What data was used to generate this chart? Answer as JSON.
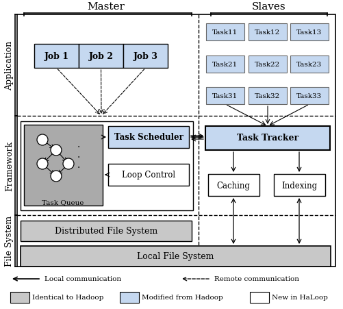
{
  "bg_color": "#ffffff",
  "gray_color": "#c8c8c8",
  "light_blue_color": "#c5d8f0",
  "white_color": "#ffffff",
  "task_queue_bg": "#aaaaaa",
  "master_label": "Master",
  "slaves_label": "Slaves",
  "app_label": "Application",
  "framework_label": "Framework",
  "filesystem_label": "File System",
  "job_labels": [
    "Job 1",
    "Job 2",
    "Job 3"
  ],
  "task_labels": [
    [
      "Task11",
      "Task12",
      "Task13"
    ],
    [
      "Task21",
      "Task22",
      "Task23"
    ],
    [
      "Task31",
      "Task32",
      "Task33"
    ]
  ],
  "task_scheduler_label": "Task Scheduler",
  "loop_control_label": "Loop Control",
  "task_tracker_label": "Task Tracker",
  "caching_label": "Caching",
  "indexing_label": "Indexing",
  "task_queue_label": "Task Queue",
  "dfs_label": "Distributed File System",
  "lfs_label": "Local File System",
  "legend_local": "Local communication",
  "legend_remote": "Remote communication",
  "legend_identical": "Identical to Hadoop",
  "legend_modified": "Modified from Hadoop",
  "legend_new": "New in HaLoop"
}
